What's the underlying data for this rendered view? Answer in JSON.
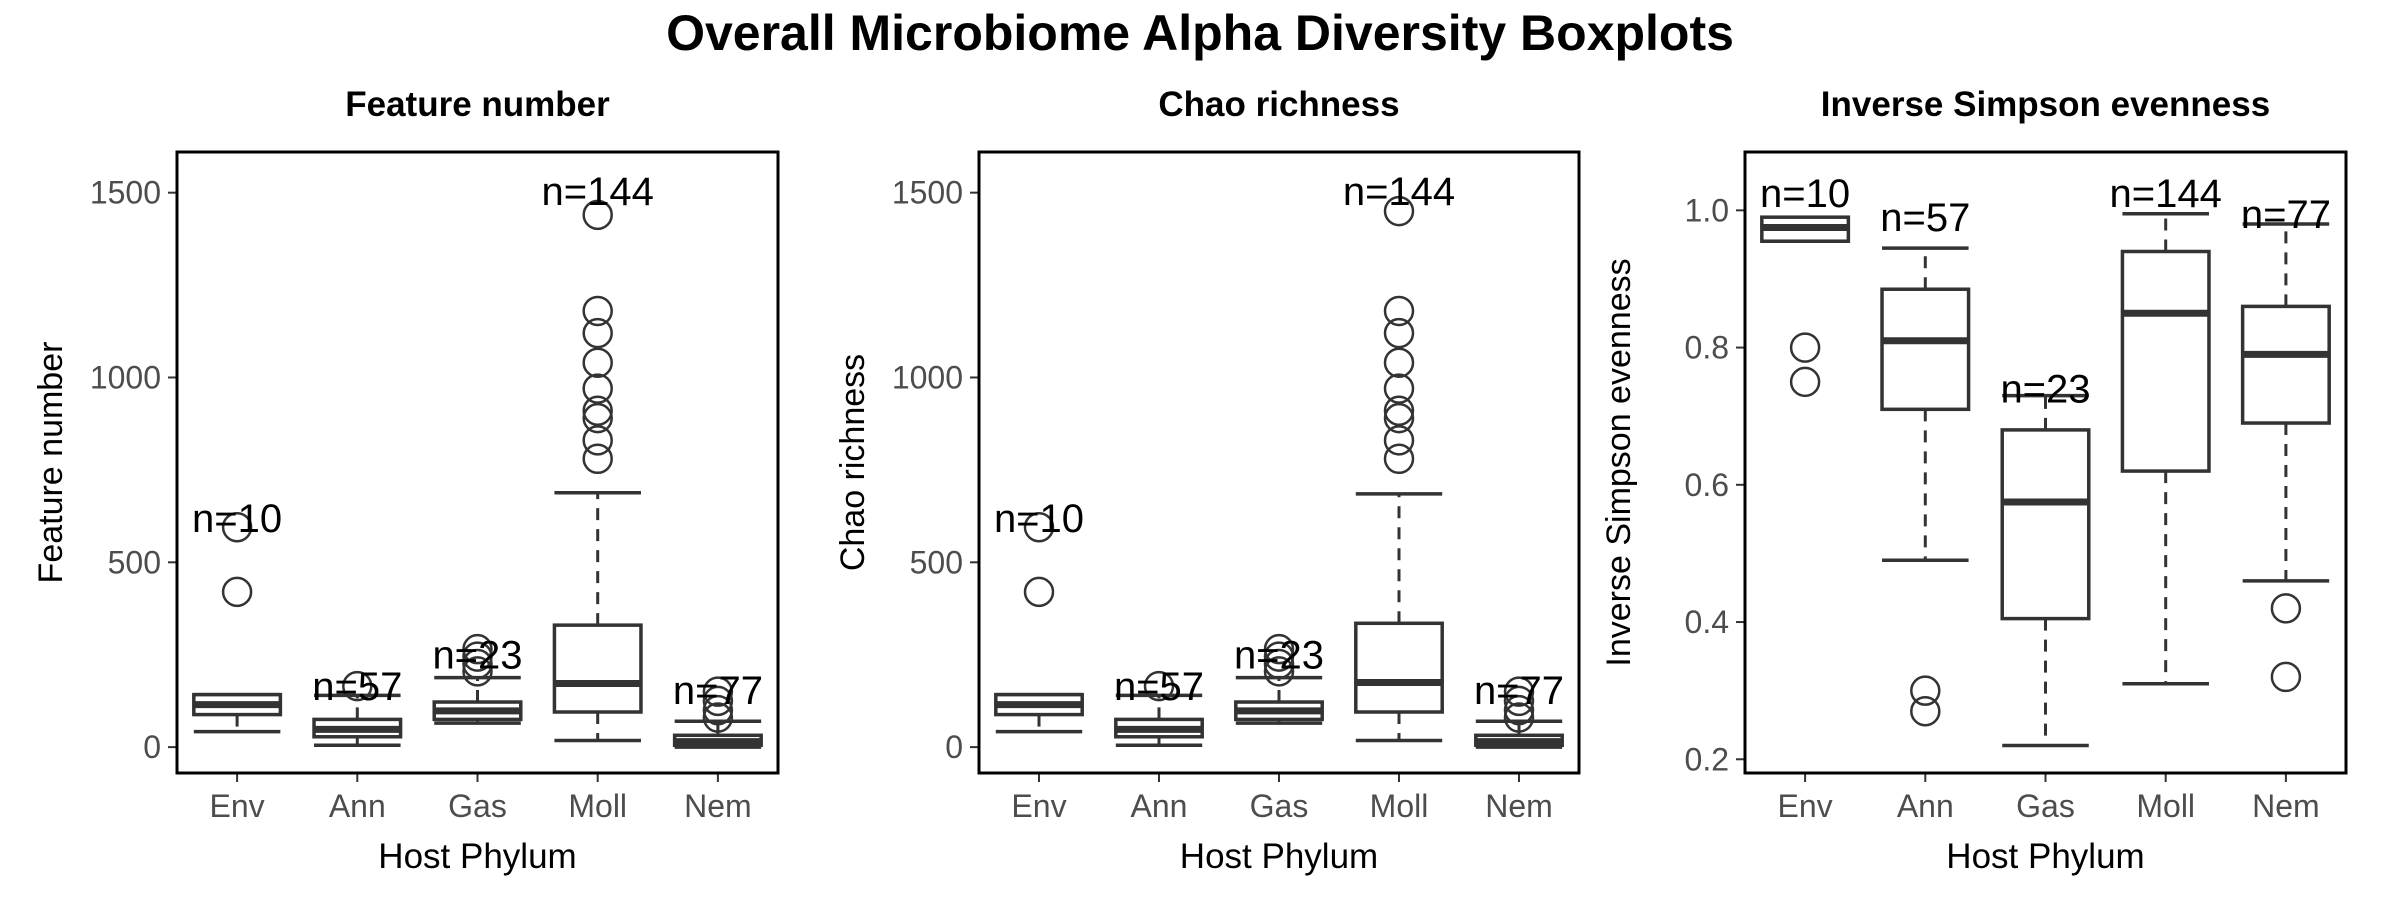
{
  "figure": {
    "title": "Overall Microbiome Alpha Diversity Boxplots"
  },
  "chart_data": [
    {
      "type": "box",
      "title": "Feature number",
      "xlabel": "Host Phylum",
      "ylabel": "Feature number",
      "ylim": [
        -70,
        1610
      ],
      "yticks": [
        0,
        500,
        1000,
        1500
      ],
      "ytick_labels": [
        "0",
        "500",
        "1000",
        "1500"
      ],
      "categories": [
        "Env",
        "Ann",
        "Gas",
        "Moll",
        "Nem"
      ],
      "n_labels": [
        "n=10",
        "n=57",
        "n=23",
        "n=144",
        "n=77"
      ],
      "n_label_y": [
        620,
        165,
        250,
        1505,
        155
      ],
      "grid": false,
      "boxes": [
        {
          "q1": 88,
          "median": 115,
          "q3": 142,
          "whisker_low": 42,
          "whisker_high": 142,
          "outliers": [
            420,
            595
          ]
        },
        {
          "q1": 28,
          "median": 48,
          "q3": 75,
          "whisker_low": 5,
          "whisker_high": 140,
          "outliers": [
            165
          ]
        },
        {
          "q1": 75,
          "median": 98,
          "q3": 122,
          "whisker_low": 65,
          "whisker_high": 188,
          "outliers": [
            205,
            225,
            245,
            265
          ]
        },
        {
          "q1": 95,
          "median": 172,
          "q3": 330,
          "whisker_low": 18,
          "whisker_high": 688,
          "outliers": [
            780,
            830,
            890,
            910,
            970,
            1040,
            1120,
            1180,
            1440
          ]
        },
        {
          "q1": 5,
          "median": 15,
          "q3": 32,
          "whisker_low": 0,
          "whisker_high": 70,
          "outliers": [
            80,
            100,
            125,
            150
          ]
        }
      ]
    },
    {
      "type": "box",
      "title": "Chao richness",
      "xlabel": "Host Phylum",
      "ylabel": "Chao richness",
      "ylim": [
        -70,
        1610
      ],
      "yticks": [
        0,
        500,
        1000,
        1500
      ],
      "ytick_labels": [
        "0",
        "500",
        "1000",
        "1500"
      ],
      "categories": [
        "Env",
        "Ann",
        "Gas",
        "Moll",
        "Nem"
      ],
      "n_labels": [
        "n=10",
        "n=57",
        "n=23",
        "n=144",
        "n=77"
      ],
      "n_label_y": [
        620,
        165,
        250,
        1505,
        155
      ],
      "grid": false,
      "boxes": [
        {
          "q1": 88,
          "median": 115,
          "q3": 142,
          "whisker_low": 42,
          "whisker_high": 142,
          "outliers": [
            420,
            595
          ]
        },
        {
          "q1": 28,
          "median": 48,
          "q3": 75,
          "whisker_low": 5,
          "whisker_high": 140,
          "outliers": [
            165
          ]
        },
        {
          "q1": 75,
          "median": 98,
          "q3": 122,
          "whisker_low": 65,
          "whisker_high": 188,
          "outliers": [
            205,
            225,
            245,
            265
          ]
        },
        {
          "q1": 95,
          "median": 175,
          "q3": 335,
          "whisker_low": 18,
          "whisker_high": 685,
          "outliers": [
            780,
            830,
            890,
            910,
            970,
            1040,
            1120,
            1180,
            1450
          ]
        },
        {
          "q1": 5,
          "median": 15,
          "q3": 32,
          "whisker_low": 0,
          "whisker_high": 70,
          "outliers": [
            80,
            100,
            125,
            150
          ]
        }
      ]
    },
    {
      "type": "box",
      "title": "Inverse Simpson evenness",
      "xlabel": "Host Phylum",
      "ylabel": "Inverse Simpson evenness",
      "ylim": [
        0.18,
        1.085
      ],
      "yticks": [
        0.2,
        0.4,
        0.6,
        0.8,
        1.0
      ],
      "ytick_labels": [
        "0.2",
        "0.4",
        "0.6",
        "0.8",
        "1.0"
      ],
      "categories": [
        "Env",
        "Ann",
        "Gas",
        "Moll",
        "Nem"
      ],
      "n_labels": [
        "n=10",
        "n=57",
        "n=23",
        "n=144",
        "n=77"
      ],
      "n_label_y": [
        1.025,
        0.99,
        0.74,
        1.025,
        0.995
      ],
      "grid": false,
      "boxes": [
        {
          "q1": 0.955,
          "median": 0.975,
          "q3": 0.99,
          "whisker_low": 0.955,
          "whisker_high": 0.99,
          "outliers": [
            0.75,
            0.8
          ]
        },
        {
          "q1": 0.71,
          "median": 0.81,
          "q3": 0.885,
          "whisker_low": 0.49,
          "whisker_high": 0.945,
          "outliers": [
            0.27,
            0.3
          ]
        },
        {
          "q1": 0.405,
          "median": 0.575,
          "q3": 0.68,
          "whisker_low": 0.22,
          "whisker_high": 0.73,
          "outliers": []
        },
        {
          "q1": 0.62,
          "median": 0.85,
          "q3": 0.94,
          "whisker_low": 0.31,
          "whisker_high": 0.995,
          "outliers": []
        },
        {
          "q1": 0.69,
          "median": 0.79,
          "q3": 0.86,
          "whisker_low": 0.46,
          "whisker_high": 0.98,
          "outliers": [
            0.32,
            0.42
          ]
        }
      ]
    }
  ]
}
